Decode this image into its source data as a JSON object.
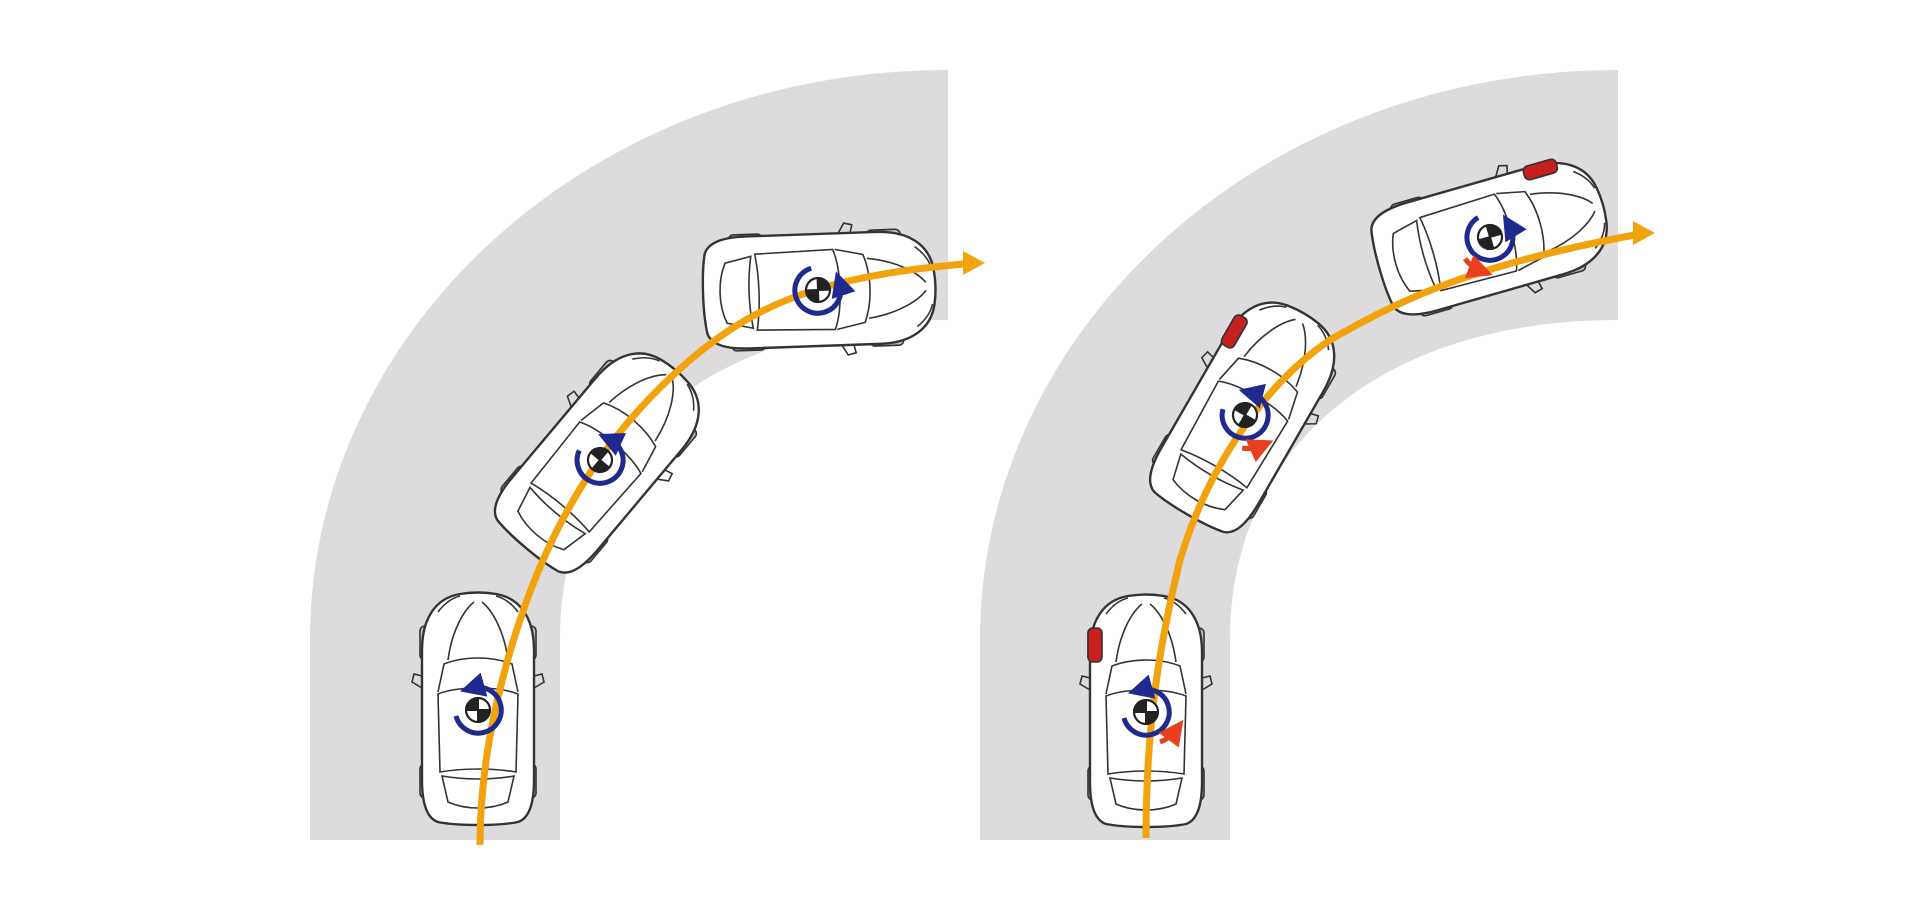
{
  "colors": {
    "background": "#ffffff",
    "road": "#dedbdf",
    "path": "#f2a20d",
    "car_body": "#ffffff",
    "car_outline": "#333333",
    "tire": "#bfbfbf",
    "yaw_arrow": "#1f2a8f",
    "correction_arrow": "#e8401f",
    "braking_wheel": "#c8201e"
  },
  "panels": [
    {
      "name": "without-stability-control",
      "cars": [
        {
          "yaw_icon": "rotation-arrow-icon",
          "braked_wheel": "none",
          "correction": false
        },
        {
          "yaw_icon": "rotation-arrow-icon",
          "braked_wheel": "none",
          "correction": false
        },
        {
          "yaw_icon": "rotation-arrow-icon",
          "braked_wheel": "none",
          "correction": false
        }
      ]
    },
    {
      "name": "with-stability-control",
      "cars": [
        {
          "yaw_icon": "rotation-arrow-icon",
          "braked_wheel": "front-left",
          "correction": true
        },
        {
          "yaw_icon": "rotation-arrow-icon",
          "braked_wheel": "front-left",
          "correction": true
        },
        {
          "yaw_icon": "rotation-arrow-icon",
          "braked_wheel": "front-left",
          "correction": true
        }
      ]
    }
  ]
}
